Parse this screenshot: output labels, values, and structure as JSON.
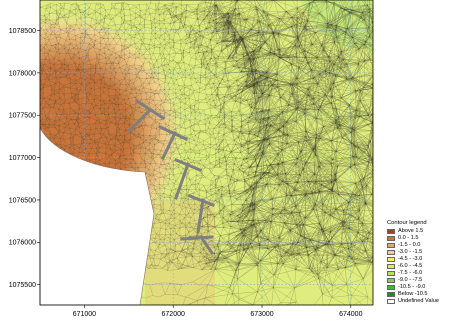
{
  "map": {
    "x_ticks": [
      {
        "value": 671000,
        "label": "671000"
      },
      {
        "value": 672000,
        "label": "672000"
      },
      {
        "value": 673000,
        "label": "673000"
      },
      {
        "value": 674000,
        "label": "674000"
      }
    ],
    "y_ticks": [
      {
        "value": 1078500,
        "label": "1078500"
      },
      {
        "value": 1078000,
        "label": "1078000"
      },
      {
        "value": 1077500,
        "label": "1077500"
      },
      {
        "value": 1077000,
        "label": "1077000"
      },
      {
        "value": 1076500,
        "label": "1076500"
      },
      {
        "value": 1076000,
        "label": "1076000"
      },
      {
        "value": 1075500,
        "label": "1075500"
      }
    ],
    "x_range": [
      670500,
      674250
    ],
    "y_range": [
      1075260,
      1078860
    ]
  },
  "legend": {
    "title": "Contour legend",
    "items": [
      {
        "label": "Above   1.5",
        "color": "#a0441c"
      },
      {
        "label": "0.0 -   1.5",
        "color": "#c8743a"
      },
      {
        "label": "-1.5 -   0.0",
        "color": "#dfa868"
      },
      {
        "label": "-3.0 -  -1.5",
        "color": "#f1d08a"
      },
      {
        "label": "-4.5 -  -3.0",
        "color": "#f7ef74"
      },
      {
        "label": "-6.0 -  -4.5",
        "color": "#dcee56"
      },
      {
        "label": "-7.5 -  -6.0",
        "color": "#b4e25a"
      },
      {
        "label": "-9.0 -  -7.5",
        "color": "#86cf4a"
      },
      {
        "label": "-10.5 -  -9.0",
        "color": "#4cb03a"
      },
      {
        "label": "Below -10.5",
        "color": "#1f8a2a"
      },
      {
        "label": "Undefined Value",
        "color": "#ffffff"
      }
    ]
  }
}
